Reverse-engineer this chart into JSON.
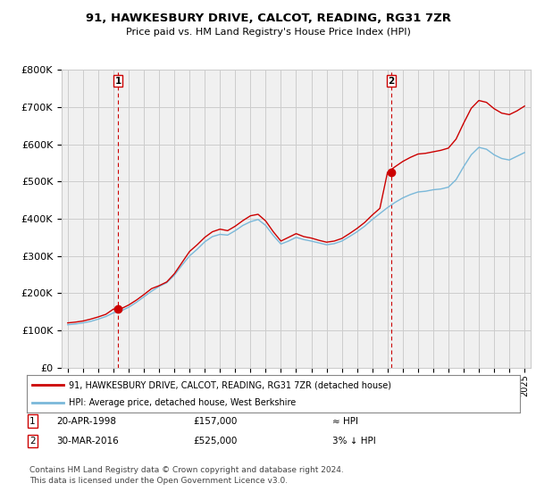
{
  "title": "91, HAWKESBURY DRIVE, CALCOT, READING, RG31 7ZR",
  "subtitle": "Price paid vs. HM Land Registry's House Price Index (HPI)",
  "sale1_date": 1998.3,
  "sale1_price": 157000,
  "sale2_date": 2016.24,
  "sale2_price": 525000,
  "hpi_color": "#7ab8d9",
  "sale_color": "#cc0000",
  "marker_color": "#cc0000",
  "vline_color": "#cc0000",
  "grid_color": "#cccccc",
  "bg_color": "#ffffff",
  "plot_bg_color": "#f0f0f0",
  "ylim": [
    0,
    800000
  ],
  "xlim": [
    1994.6,
    2025.4
  ],
  "legend_entry1": "91, HAWKESBURY DRIVE, CALCOT, READING, RG31 7ZR (detached house)",
  "legend_entry2": "HPI: Average price, detached house, West Berkshire",
  "footer": "Contains HM Land Registry data © Crown copyright and database right 2024.\nThis data is licensed under the Open Government Licence v3.0.",
  "yticks": [
    0,
    100000,
    200000,
    300000,
    400000,
    500000,
    600000,
    700000,
    800000
  ],
  "hpi_years": [
    1995,
    1995.5,
    1996,
    1996.5,
    1997,
    1997.5,
    1998,
    1998.5,
    1999,
    1999.5,
    2000,
    2000.5,
    2001,
    2001.5,
    2002,
    2002.5,
    2003,
    2003.5,
    2004,
    2004.5,
    2005,
    2005.5,
    2006,
    2006.5,
    2007,
    2007.5,
    2008,
    2008.5,
    2009,
    2009.5,
    2010,
    2010.5,
    2011,
    2011.5,
    2012,
    2012.5,
    2013,
    2013.5,
    2014,
    2014.5,
    2015,
    2015.5,
    2016,
    2016.5,
    2017,
    2017.5,
    2018,
    2018.5,
    2019,
    2019.5,
    2020,
    2020.5,
    2021,
    2021.5,
    2022,
    2022.5,
    2023,
    2023.5,
    2024,
    2024.5,
    2025
  ],
  "hpi_values": [
    115000,
    117000,
    120000,
    124000,
    130000,
    137000,
    147000,
    152000,
    162000,
    175000,
    190000,
    205000,
    218000,
    228000,
    248000,
    275000,
    300000,
    318000,
    338000,
    352000,
    358000,
    356000,
    368000,
    382000,
    392000,
    398000,
    382000,
    355000,
    332000,
    340000,
    350000,
    344000,
    340000,
    335000,
    330000,
    333000,
    340000,
    352000,
    365000,
    380000,
    398000,
    414000,
    430000,
    444000,
    456000,
    465000,
    472000,
    474000,
    478000,
    480000,
    485000,
    505000,
    540000,
    572000,
    592000,
    587000,
    572000,
    562000,
    558000,
    568000,
    578000
  ],
  "sale_years": [
    1995,
    1995.5,
    1996,
    1996.5,
    1997,
    1997.5,
    1998,
    1998.5,
    1999,
    1999.5,
    2000,
    2000.5,
    2001,
    2001.5,
    2002,
    2002.5,
    2003,
    2003.5,
    2004,
    2004.5,
    2005,
    2005.5,
    2006,
    2006.5,
    2007,
    2007.5,
    2008,
    2008.5,
    2009,
    2009.5,
    2010,
    2010.5,
    2011,
    2011.5,
    2012,
    2012.5,
    2013,
    2013.5,
    2014,
    2014.5,
    2015,
    2015.5,
    2016,
    2016.5,
    2017,
    2017.5,
    2018,
    2018.5,
    2019,
    2019.5,
    2020,
    2020.5,
    2021,
    2021.5,
    2022,
    2022.5,
    2023,
    2023.5,
    2024,
    2024.5,
    2025
  ],
  "sale_values": [
    120000,
    122000,
    125000,
    130000,
    136000,
    143000,
    157000,
    158000,
    168000,
    181000,
    196000,
    212000,
    220000,
    230000,
    252000,
    282000,
    312000,
    330000,
    350000,
    365000,
    372000,
    368000,
    380000,
    395000,
    408000,
    412000,
    394000,
    365000,
    340000,
    350000,
    360000,
    352000,
    348000,
    342000,
    337000,
    340000,
    347000,
    360000,
    374000,
    390000,
    410000,
    428000,
    525000,
    540000,
    554000,
    565000,
    574000,
    576000,
    580000,
    584000,
    590000,
    614000,
    657000,
    697000,
    718000,
    713000,
    696000,
    684000,
    680000,
    690000,
    703000
  ]
}
